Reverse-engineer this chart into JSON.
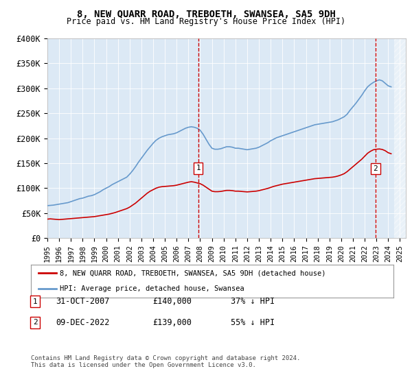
{
  "title": "8, NEW QUARR ROAD, TREBOETH, SWANSEA, SA5 9DH",
  "subtitle": "Price paid vs. HM Land Registry's House Price Index (HPI)",
  "ylabel": "",
  "xlabel": "",
  "ylim": [
    0,
    400000
  ],
  "xlim_start": 1995.0,
  "xlim_end": 2025.5,
  "yticks": [
    0,
    50000,
    100000,
    150000,
    200000,
    250000,
    300000,
    350000,
    400000
  ],
  "ytick_labels": [
    "£0",
    "£50K",
    "£100K",
    "£150K",
    "£200K",
    "£250K",
    "£300K",
    "£350K",
    "£400K"
  ],
  "background_color": "#dce9f5",
  "plot_bg": "#dce9f5",
  "line1_color": "#cc0000",
  "line2_color": "#6699cc",
  "marker1_label": "1",
  "marker2_label": "2",
  "marker1_x": 2007.83,
  "marker1_y": 140000,
  "marker2_x": 2022.92,
  "marker2_y": 139000,
  "legend_line1": "8, NEW QUARR ROAD, TREBOETH, SWANSEA, SA5 9DH (detached house)",
  "legend_line2": "HPI: Average price, detached house, Swansea",
  "table_row1_num": "1",
  "table_row1_date": "31-OCT-2007",
  "table_row1_price": "£140,000",
  "table_row1_hpi": "37% ↓ HPI",
  "table_row2_num": "2",
  "table_row2_date": "09-DEC-2022",
  "table_row2_price": "£139,000",
  "table_row2_hpi": "55% ↓ HPI",
  "footnote": "Contains HM Land Registry data © Crown copyright and database right 2024.\nThis data is licensed under the Open Government Licence v3.0.",
  "hpi_years": [
    1995,
    1995.25,
    1995.5,
    1995.75,
    1996,
    1996.25,
    1996.5,
    1996.75,
    1997,
    1997.25,
    1997.5,
    1997.75,
    1998,
    1998.25,
    1998.5,
    1998.75,
    1999,
    1999.25,
    1999.5,
    1999.75,
    2000,
    2000.25,
    2000.5,
    2000.75,
    2001,
    2001.25,
    2001.5,
    2001.75,
    2002,
    2002.25,
    2002.5,
    2002.75,
    2003,
    2003.25,
    2003.5,
    2003.75,
    2004,
    2004.25,
    2004.5,
    2004.75,
    2005,
    2005.25,
    2005.5,
    2005.75,
    2006,
    2006.25,
    2006.5,
    2006.75,
    2007,
    2007.25,
    2007.5,
    2007.75,
    2008,
    2008.25,
    2008.5,
    2008.75,
    2009,
    2009.25,
    2009.5,
    2009.75,
    2010,
    2010.25,
    2010.5,
    2010.75,
    2011,
    2011.25,
    2011.5,
    2011.75,
    2012,
    2012.25,
    2012.5,
    2012.75,
    2013,
    2013.25,
    2013.5,
    2013.75,
    2014,
    2014.25,
    2014.5,
    2014.75,
    2015,
    2015.25,
    2015.5,
    2015.75,
    2016,
    2016.25,
    2016.5,
    2016.75,
    2017,
    2017.25,
    2017.5,
    2017.75,
    2018,
    2018.25,
    2018.5,
    2018.75,
    2019,
    2019.25,
    2019.5,
    2019.75,
    2020,
    2020.25,
    2020.5,
    2020.75,
    2021,
    2021.25,
    2021.5,
    2021.75,
    2022,
    2022.25,
    2022.5,
    2022.75,
    2023,
    2023.25,
    2023.5,
    2023.75,
    2024,
    2024.25
  ],
  "hpi_values": [
    65000,
    65500,
    66000,
    67000,
    68000,
    69000,
    70000,
    71000,
    73000,
    75000,
    77000,
    79000,
    80000,
    82000,
    84000,
    85000,
    87000,
    90000,
    93000,
    97000,
    100000,
    103000,
    107000,
    110000,
    113000,
    116000,
    119000,
    122000,
    128000,
    135000,
    143000,
    152000,
    160000,
    168000,
    176000,
    183000,
    190000,
    196000,
    200000,
    203000,
    205000,
    207000,
    208000,
    209000,
    211000,
    214000,
    217000,
    220000,
    222000,
    223000,
    222000,
    220000,
    216000,
    208000,
    198000,
    188000,
    180000,
    178000,
    178000,
    179000,
    181000,
    183000,
    183000,
    182000,
    180000,
    180000,
    179000,
    178000,
    177000,
    178000,
    179000,
    180000,
    182000,
    185000,
    188000,
    191000,
    195000,
    198000,
    201000,
    203000,
    205000,
    207000,
    209000,
    211000,
    213000,
    215000,
    217000,
    219000,
    221000,
    223000,
    225000,
    227000,
    228000,
    229000,
    230000,
    231000,
    232000,
    233000,
    235000,
    237000,
    240000,
    243000,
    248000,
    256000,
    263000,
    270000,
    278000,
    286000,
    295000,
    303000,
    308000,
    312000,
    315000,
    317000,
    315000,
    310000,
    305000,
    303000
  ],
  "red_years": [
    1995,
    1995.25,
    1995.5,
    1995.75,
    1996,
    1996.25,
    1996.5,
    1996.75,
    1997,
    1997.25,
    1997.5,
    1997.75,
    1998,
    1998.25,
    1998.5,
    1998.75,
    1999,
    1999.25,
    1999.5,
    1999.75,
    2000,
    2000.25,
    2000.5,
    2000.75,
    2001,
    2001.25,
    2001.5,
    2001.75,
    2002,
    2002.25,
    2002.5,
    2002.75,
    2003,
    2003.25,
    2003.5,
    2003.75,
    2004,
    2004.25,
    2004.5,
    2004.75,
    2005,
    2005.25,
    2005.5,
    2005.75,
    2006,
    2006.25,
    2006.5,
    2006.75,
    2007,
    2007.25,
    2007.5,
    2007.75,
    2008,
    2008.25,
    2008.5,
    2008.75,
    2009,
    2009.25,
    2009.5,
    2009.75,
    2010,
    2010.25,
    2010.5,
    2010.75,
    2011,
    2011.25,
    2011.5,
    2011.75,
    2012,
    2012.25,
    2012.5,
    2012.75,
    2013,
    2013.25,
    2013.5,
    2013.75,
    2014,
    2014.25,
    2014.5,
    2014.75,
    2015,
    2015.25,
    2015.5,
    2015.75,
    2016,
    2016.25,
    2016.5,
    2016.75,
    2017,
    2017.25,
    2017.5,
    2017.75,
    2018,
    2018.25,
    2018.5,
    2018.75,
    2019,
    2019.25,
    2019.5,
    2019.75,
    2020,
    2020.25,
    2020.5,
    2020.75,
    2021,
    2021.25,
    2021.5,
    2021.75,
    2022,
    2022.25,
    2022.5,
    2022.75,
    2023,
    2023.25,
    2023.5,
    2023.75,
    2024,
    2024.25
  ],
  "red_values": [
    38000,
    38500,
    38000,
    37500,
    37000,
    37500,
    38000,
    38500,
    39000,
    39500,
    40000,
    40500,
    41000,
    41500,
    42000,
    42500,
    43000,
    44000,
    45000,
    46000,
    47000,
    48000,
    49500,
    51000,
    53000,
    55000,
    57000,
    59000,
    62000,
    66000,
    70000,
    75000,
    80000,
    85000,
    90000,
    94000,
    97000,
    100000,
    102000,
    103000,
    103500,
    104000,
    104500,
    105000,
    106000,
    107500,
    109000,
    110500,
    112000,
    113000,
    112000,
    110500,
    109000,
    106000,
    102000,
    98000,
    94000,
    93000,
    93000,
    93500,
    94500,
    95500,
    95500,
    95000,
    94000,
    94000,
    93500,
    93000,
    92500,
    93000,
    93500,
    94000,
    95000,
    96500,
    98000,
    99500,
    101500,
    103500,
    105000,
    106500,
    108000,
    109000,
    110000,
    111000,
    112000,
    113000,
    114000,
    115000,
    116000,
    117000,
    118000,
    119000,
    119500,
    120000,
    120500,
    121000,
    121500,
    122000,
    123000,
    124500,
    126500,
    129000,
    133000,
    138000,
    143000,
    148000,
    153000,
    158000,
    164000,
    170000,
    174000,
    177000,
    178000,
    178500,
    177500,
    175000,
    171000,
    169000
  ]
}
